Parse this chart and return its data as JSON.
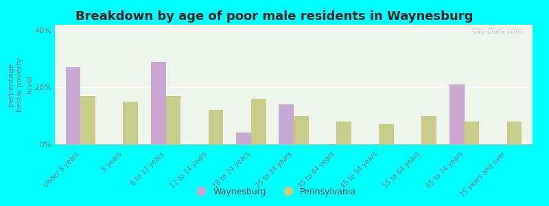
{
  "title": "Breakdown by age of poor male residents in Waynesburg",
  "ylabel": "percentage\nbelow poverty\nlevel",
  "categories": [
    "Under 5 years",
    "5 years",
    "6 to 11 years",
    "12 to 14 years",
    "18 to 24 years",
    "25 to 34 years",
    "35 to 44 years",
    "45 to 54 years",
    "55 to 64 years",
    "65 to 74 years",
    "75 years and over"
  ],
  "waynesburg": [
    27.0,
    0.0,
    29.0,
    0.0,
    4.0,
    14.0,
    0.0,
    0.0,
    0.0,
    21.0,
    0.0
  ],
  "pennsylvania": [
    17.0,
    15.0,
    17.0,
    12.0,
    16.0,
    10.0,
    8.0,
    7.0,
    10.0,
    8.0,
    8.0
  ],
  "waynesburg_color": "#c9a8d4",
  "pennsylvania_color": "#c8cc8a",
  "background_color": "#00ffff",
  "plot_bg": "#eef6ec",
  "ylim": [
    0,
    42
  ],
  "yticks": [
    0,
    20,
    40
  ],
  "ytick_labels": [
    "0%",
    "20%",
    "40%"
  ],
  "title_fontsize": 13,
  "ylabel_fontsize": 8,
  "bar_width": 0.35,
  "legend_labels": [
    "Waynesburg",
    "Pennsylvania"
  ],
  "watermark": "City-Data.com"
}
